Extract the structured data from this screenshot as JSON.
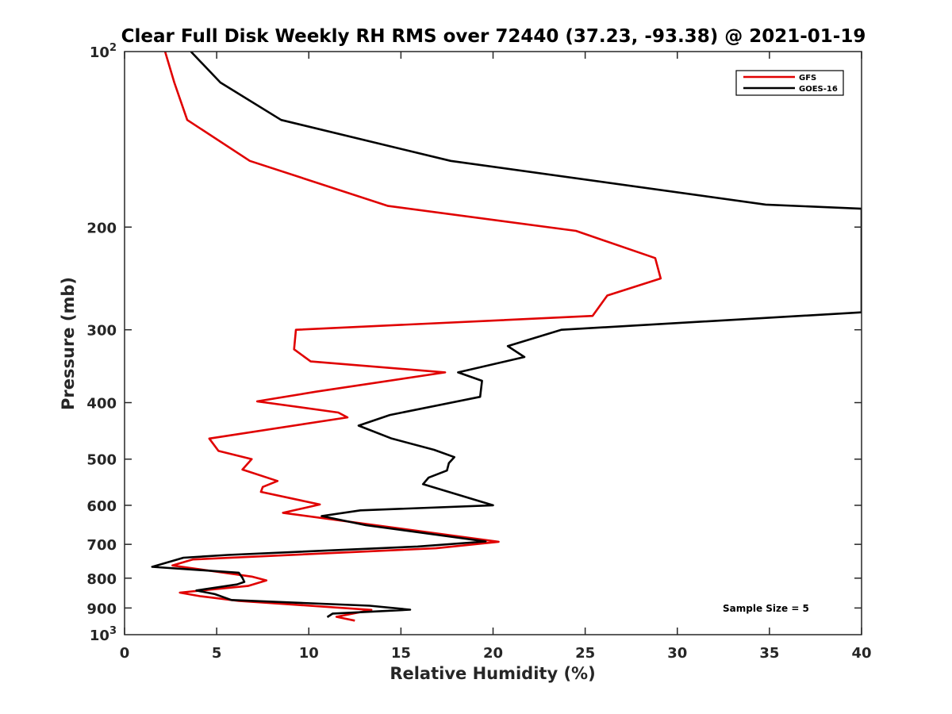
{
  "chart_data": {
    "type": "line",
    "title": "Clear Full Disk Weekly RH RMS over 72440 (37.23, -93.38) @ 2021-01-19",
    "xlabel": "Relative Humidity (%)",
    "ylabel": "Pressure (mb)",
    "xlim": [
      0,
      40
    ],
    "ylim": [
      100,
      1000
    ],
    "yscale": "log",
    "y_reversed": true,
    "grid": false,
    "legend_position": "top-right",
    "xticks": [
      0,
      5,
      10,
      15,
      20,
      25,
      30,
      35,
      40
    ],
    "xtick_labels": [
      "0",
      "5",
      "10",
      "15",
      "20",
      "25",
      "30",
      "35",
      "40"
    ],
    "yticks": [
      200,
      300,
      400,
      500,
      600,
      700,
      800,
      900
    ],
    "ytick_labels": [
      "200",
      "300",
      "400",
      "500",
      "600",
      "700",
      "800",
      "900"
    ],
    "yticks_power": [
      {
        "value": 100,
        "base": "10",
        "exp": "2"
      },
      {
        "value": 1000,
        "base": "10",
        "exp": "3"
      }
    ],
    "annotation": "Sample Size = 5",
    "series": [
      {
        "name": "GFS",
        "color": "#e00000",
        "points": [
          [
            2.2,
            100
          ],
          [
            2.7,
            113
          ],
          [
            3.4,
            131
          ],
          [
            6.8,
            154
          ],
          [
            14.3,
            184
          ],
          [
            24.5,
            203
          ],
          [
            28.8,
            226
          ],
          [
            29.1,
            245
          ],
          [
            26.2,
            262
          ],
          [
            25.4,
            284
          ],
          [
            9.3,
            300
          ],
          [
            9.2,
            324
          ],
          [
            10.1,
            340
          ],
          [
            17.4,
            355
          ],
          [
            10.4,
            383
          ],
          [
            7.2,
            398
          ],
          [
            11.6,
            416
          ],
          [
            12.1,
            424
          ],
          [
            4.6,
            461
          ],
          [
            5.1,
            484
          ],
          [
            6.9,
            500
          ],
          [
            6.4,
            521
          ],
          [
            8.3,
            545
          ],
          [
            7.5,
            558
          ],
          [
            7.4,
            569
          ],
          [
            10.6,
            598
          ],
          [
            8.6,
            618
          ],
          [
            20.3,
            693
          ],
          [
            16.9,
            711
          ],
          [
            3.7,
            743
          ],
          [
            2.6,
            761
          ],
          [
            6.9,
            795
          ],
          [
            7.7,
            807
          ],
          [
            6.7,
            825
          ],
          [
            3.0,
            847
          ],
          [
            4.1,
            859
          ],
          [
            6.2,
            875
          ],
          [
            13.4,
            907
          ],
          [
            11.5,
            932
          ],
          [
            12.5,
            946
          ]
        ]
      },
      {
        "name": "GOES-16",
        "color": "#000000",
        "points": [
          [
            3.6,
            100
          ],
          [
            5.2,
            113
          ],
          [
            8.5,
            131
          ],
          [
            17.7,
            154
          ],
          [
            34.8,
            183
          ],
          [
            40.0,
            186
          ],
          [
            40.0,
            280
          ],
          [
            23.7,
            300
          ],
          [
            20.8,
            320
          ],
          [
            21.7,
            334
          ],
          [
            18.1,
            355
          ],
          [
            19.4,
            367
          ],
          [
            19.3,
            391
          ],
          [
            14.4,
            420
          ],
          [
            12.7,
            438
          ],
          [
            14.5,
            461
          ],
          [
            16.8,
            482
          ],
          [
            17.9,
            496
          ],
          [
            17.6,
            508
          ],
          [
            17.5,
            523
          ],
          [
            16.5,
            538
          ],
          [
            16.2,
            552
          ],
          [
            20.0,
            600
          ],
          [
            12.8,
            612
          ],
          [
            10.7,
            626
          ],
          [
            13.1,
            649
          ],
          [
            19.6,
            692
          ],
          [
            15.9,
            706
          ],
          [
            5.6,
            730
          ],
          [
            3.2,
            738
          ],
          [
            1.5,
            765
          ],
          [
            6.2,
            783
          ],
          [
            6.4,
            799
          ],
          [
            6.5,
            812
          ],
          [
            6.1,
            820
          ],
          [
            3.9,
            840
          ],
          [
            4.9,
            852
          ],
          [
            5.8,
            872
          ],
          [
            13.3,
            892
          ],
          [
            15.5,
            906
          ],
          [
            11.3,
            920
          ],
          [
            11.0,
            933
          ]
        ]
      }
    ]
  }
}
